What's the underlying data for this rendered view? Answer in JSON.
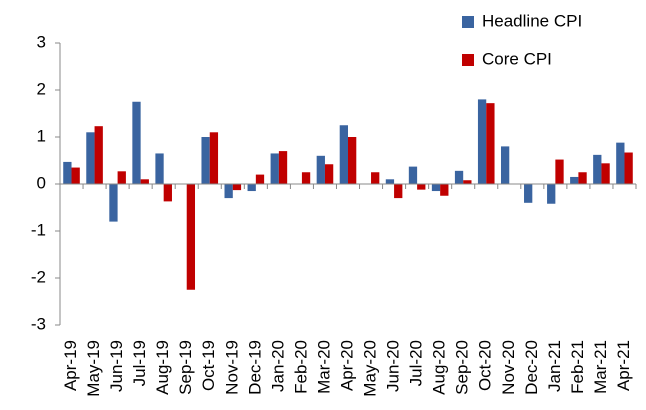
{
  "chart_data": {
    "type": "bar",
    "categories": [
      "Apr-19",
      "May-19",
      "Jun-19",
      "Jul-19",
      "Aug-19",
      "Sep-19",
      "Oct-19",
      "Nov-19",
      "Dec-19",
      "Jan-20",
      "Feb-20",
      "Mar-20",
      "Apr-20",
      "May-20",
      "Jun-20",
      "Jul-20",
      "Aug-20",
      "Sep-20",
      "Oct-20",
      "Nov-20",
      "Dec-20",
      "Jan-21",
      "Feb-21",
      "Mar-21",
      "Apr-21"
    ],
    "series": [
      {
        "name": "Headline CPI",
        "color": "#3a64a0",
        "values": [
          0.47,
          1.1,
          -0.8,
          1.75,
          0.65,
          0,
          1.0,
          -0.3,
          -0.15,
          0.65,
          0,
          0.6,
          1.25,
          0,
          0.1,
          0.37,
          -0.15,
          0.28,
          1.8,
          0.8,
          -0.4,
          -0.42,
          0.15,
          0.62,
          0.88
        ]
      },
      {
        "name": "Core CPI",
        "color": "#c00000",
        "values": [
          0.35,
          1.23,
          0.27,
          0.1,
          -0.37,
          -2.25,
          1.1,
          -0.13,
          0.2,
          0.7,
          0.25,
          0.42,
          1.0,
          0.25,
          -0.3,
          -0.12,
          -0.25,
          0.08,
          1.72,
          0,
          0,
          0.52,
          0.25,
          0.44,
          0.67
        ]
      }
    ],
    "ylim": [
      -3,
      3
    ],
    "yticks": [
      -3,
      -2,
      -1,
      0,
      1,
      2,
      3
    ],
    "legend": "top-right"
  }
}
